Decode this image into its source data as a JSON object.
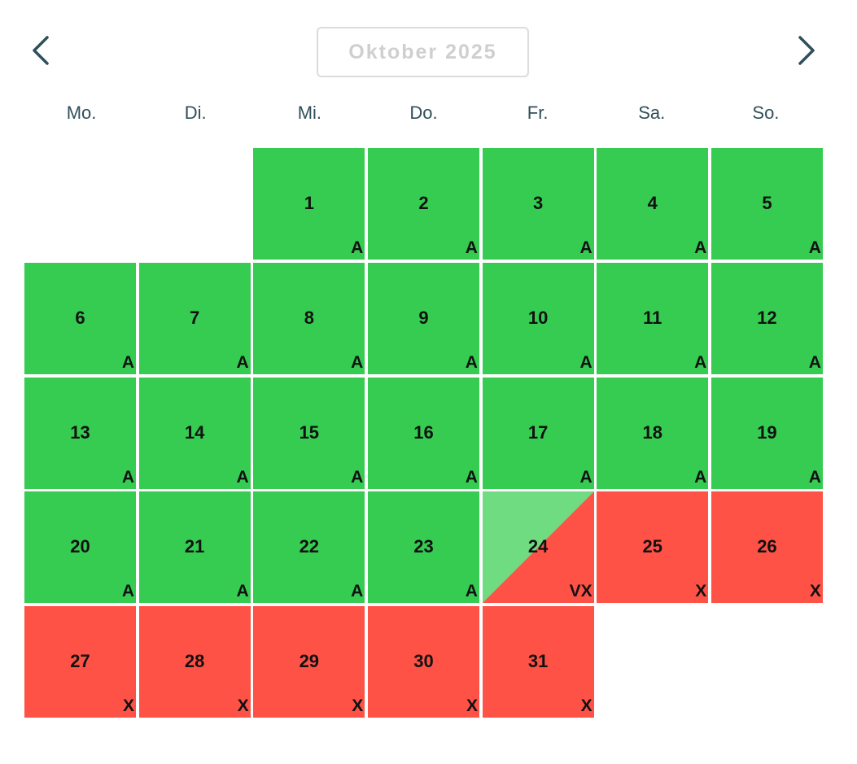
{
  "header": {
    "month_label": "Oktober 2025",
    "prev_icon": "chevron-left-icon",
    "next_icon": "chevron-right-icon"
  },
  "weekdays": [
    "Mo.",
    "Di.",
    "Mi.",
    "Do.",
    "Fr.",
    "Sa.",
    "So."
  ],
  "colors": {
    "available": "#36cc52",
    "available_light": "#6fdc82",
    "unavailable": "#ff5247",
    "title_text": "#cfcfcf",
    "weekday_text": "#2f4f5a"
  },
  "leading_empty_days": 2,
  "days": [
    {
      "day": "1",
      "code": "A",
      "status": "green"
    },
    {
      "day": "2",
      "code": "A",
      "status": "green"
    },
    {
      "day": "3",
      "code": "A",
      "status": "green"
    },
    {
      "day": "4",
      "code": "A",
      "status": "green"
    },
    {
      "day": "5",
      "code": "A",
      "status": "green"
    },
    {
      "day": "6",
      "code": "A",
      "status": "green"
    },
    {
      "day": "7",
      "code": "A",
      "status": "green"
    },
    {
      "day": "8",
      "code": "A",
      "status": "green"
    },
    {
      "day": "9",
      "code": "A",
      "status": "green"
    },
    {
      "day": "10",
      "code": "A",
      "status": "green"
    },
    {
      "day": "11",
      "code": "A",
      "status": "green"
    },
    {
      "day": "12",
      "code": "A",
      "status": "green"
    },
    {
      "day": "13",
      "code": "A",
      "status": "green"
    },
    {
      "day": "14",
      "code": "A",
      "status": "green"
    },
    {
      "day": "15",
      "code": "A",
      "status": "green"
    },
    {
      "day": "16",
      "code": "A",
      "status": "green"
    },
    {
      "day": "17",
      "code": "A",
      "status": "green"
    },
    {
      "day": "18",
      "code": "A",
      "status": "green"
    },
    {
      "day": "19",
      "code": "A",
      "status": "green"
    },
    {
      "day": "20",
      "code": "A",
      "status": "green"
    },
    {
      "day": "21",
      "code": "A",
      "status": "green"
    },
    {
      "day": "22",
      "code": "A",
      "status": "green"
    },
    {
      "day": "23",
      "code": "A",
      "status": "green"
    },
    {
      "day": "24",
      "code": "VX",
      "status": "split"
    },
    {
      "day": "25",
      "code": "X",
      "status": "red"
    },
    {
      "day": "26",
      "code": "X",
      "status": "red"
    },
    {
      "day": "27",
      "code": "X",
      "status": "red"
    },
    {
      "day": "28",
      "code": "X",
      "status": "red"
    },
    {
      "day": "29",
      "code": "X",
      "status": "red"
    },
    {
      "day": "30",
      "code": "X",
      "status": "red"
    },
    {
      "day": "31",
      "code": "X",
      "status": "red"
    }
  ]
}
